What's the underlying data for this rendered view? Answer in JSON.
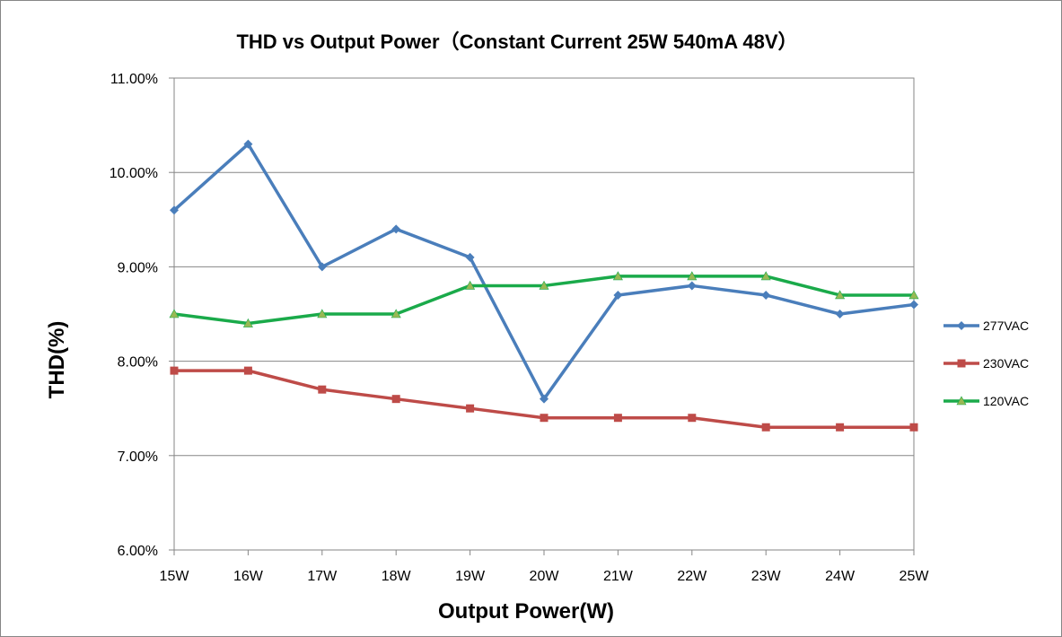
{
  "chart_data": {
    "type": "line",
    "title": "THD vs Output Power（Constant Current 25W  540mA 48V）",
    "xlabel": "Output Power(W)",
    "ylabel": "THD(%)",
    "categories": [
      "15W",
      "16W",
      "17W",
      "18W",
      "19W",
      "20W",
      "21W",
      "22W",
      "23W",
      "24W",
      "25W"
    ],
    "ylim": [
      6.0,
      11.0
    ],
    "yticks": [
      "6.00%",
      "7.00%",
      "8.00%",
      "9.00%",
      "10.00%",
      "11.00%"
    ],
    "grid": true,
    "legend_position": "right",
    "series": [
      {
        "name": "277VAC",
        "color": "#4a7ebb",
        "marker": "diamond",
        "values": [
          9.6,
          10.3,
          9.0,
          9.4,
          9.1,
          7.6,
          8.7,
          8.8,
          8.7,
          8.5,
          8.6
        ]
      },
      {
        "name": "230VAC",
        "color": "#be4b48",
        "marker": "square",
        "values": [
          7.9,
          7.9,
          7.7,
          7.6,
          7.5,
          7.4,
          7.4,
          7.4,
          7.3,
          7.3,
          7.3
        ]
      },
      {
        "name": "120VAC",
        "color": "#1aaa4a",
        "marker": "triangle",
        "marker_fill": "#98b954",
        "values": [
          8.5,
          8.4,
          8.5,
          8.5,
          8.8,
          8.8,
          8.9,
          8.9,
          8.9,
          8.7,
          8.7
        ]
      }
    ]
  }
}
